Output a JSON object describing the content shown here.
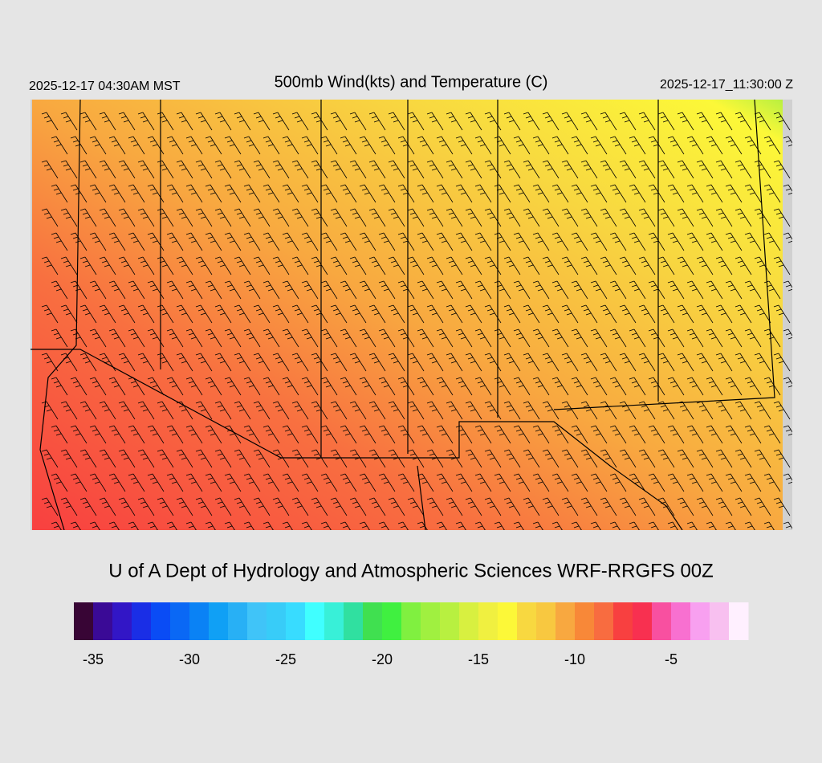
{
  "header": {
    "title": "500mb Wind(kts) and Temperature (C)",
    "local_time": "2025-12-17 04:30AM MST",
    "valid_time": "2025-12-17_11:30:00 Z"
  },
  "credit": "U of A Dept of Hydrology and Atmospheric Sciences WRF-RRGFS 00Z",
  "colorbar": {
    "range": [
      -36,
      -1
    ],
    "ticks": [
      -35,
      -30,
      -25,
      -20,
      -15,
      -10,
      -5
    ],
    "colors": [
      "#380535",
      "#3a0a96",
      "#3216c6",
      "#1a2ee6",
      "#0a4cf5",
      "#0a68f5",
      "#0a82f5",
      "#10a0f5",
      "#28b0f5",
      "#40c4f8",
      "#38ccf8",
      "#38dcff",
      "#40ffff",
      "#38f0d8",
      "#30e0a0",
      "#40e050",
      "#40f040",
      "#80f040",
      "#a0f040",
      "#b8f040",
      "#d8f040",
      "#f0f040",
      "#fcf838",
      "#f8d840",
      "#f8c840",
      "#f8a840",
      "#f88838",
      "#f86c40",
      "#f84040",
      "#f83050",
      "#f850a0",
      "#f870d0",
      "#f8a0f0",
      "#f8c0f0",
      "#fff0ff"
    ]
  }
}
